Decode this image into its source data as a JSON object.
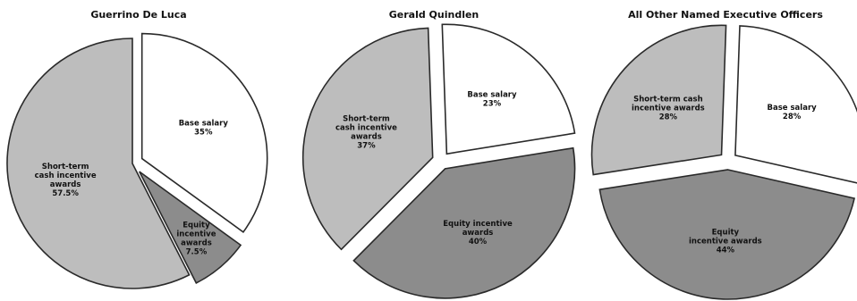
{
  "chart_data": [
    {
      "type": "pie",
      "title": "Guerrino De Luca",
      "categories": [
        "Base salary",
        "Equity incentive awards",
        "Short-term cash incentive awards"
      ],
      "values": [
        35,
        7.5,
        57.5
      ],
      "slices": [
        {
          "lines": [
            "Base salary",
            "35%"
          ],
          "color": "#ffffff"
        },
        {
          "lines": [
            "Equity",
            "incentive",
            "awards",
            "7.5%"
          ],
          "color": "#8c8c8c"
        },
        {
          "lines": [
            "Short-term",
            "cash incentive",
            "awards",
            "57.5%"
          ],
          "color": "#bdbdbd"
        }
      ]
    },
    {
      "type": "pie",
      "title": "Gerald Quindlen",
      "categories": [
        "Base salary",
        "Equity incentive awards",
        "Short-term cash incentive awards"
      ],
      "values": [
        23,
        40,
        37
      ],
      "slices": [
        {
          "lines": [
            "Base salary",
            "23%"
          ],
          "color": "#ffffff"
        },
        {
          "lines": [
            "Equity incentive",
            "awards",
            "40%"
          ],
          "color": "#8c8c8c"
        },
        {
          "lines": [
            "Short-term",
            "cash incentive",
            "awards",
            "37%"
          ],
          "color": "#bdbdbd"
        }
      ]
    },
    {
      "type": "pie",
      "title": "All Other Named Executive Officers",
      "categories": [
        "Base salary",
        "Equity incentive awards",
        "Short-term cash incentive awards"
      ],
      "values": [
        28,
        44,
        28
      ],
      "slices": [
        {
          "lines": [
            "Base salary",
            "28%"
          ],
          "color": "#ffffff"
        },
        {
          "lines": [
            "Equity",
            "incentive awards",
            "44%"
          ],
          "color": "#8c8c8c"
        },
        {
          "lines": [
            "Short-term cash",
            "incentive awards",
            "28%"
          ],
          "color": "#bdbdbd"
        }
      ]
    }
  ]
}
